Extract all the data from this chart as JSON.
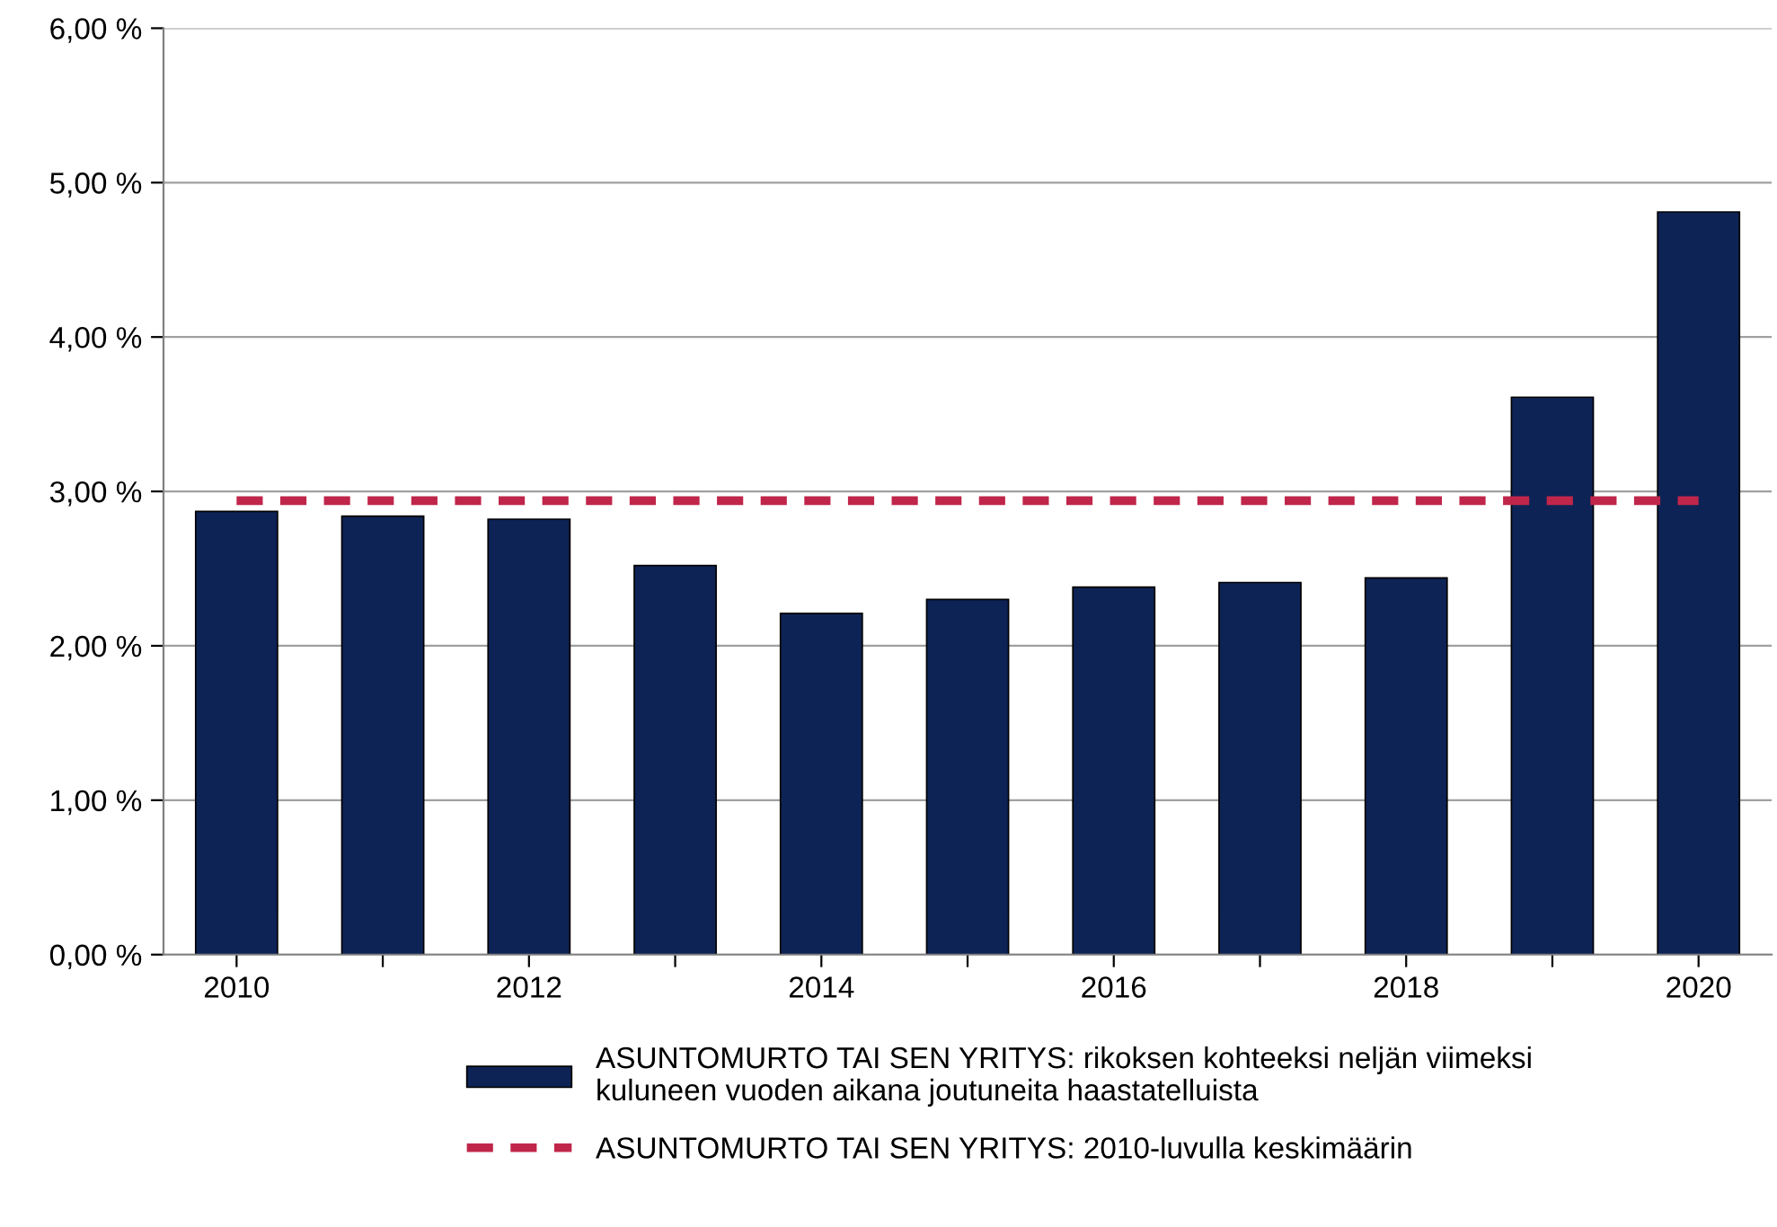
{
  "chart_data": {
    "type": "bar",
    "categories": [
      "2010",
      null,
      "2012",
      null,
      "2014",
      null,
      "2016",
      null,
      "2018",
      null,
      "2020"
    ],
    "series": [
      {
        "name": "ASUNTOMURTO TAI SEN YRITYS: rikoksen kohteeksi neljän viimeksi\nkuluneen vuoden aikana joutuneita haastatelluista",
        "color": "#0e2355",
        "values": [
          2.87,
          2.84,
          2.82,
          2.52,
          2.21,
          2.3,
          2.38,
          2.41,
          2.44,
          3.61,
          4.81
        ]
      },
      {
        "type": "line",
        "name": "ASUNTOMURTO TAI SEN YRITYS: 2010-luvulla keskimäärin",
        "color": "#c0264a",
        "line_style": "dashed",
        "values": [
          2.94,
          2.94,
          2.94,
          2.94,
          2.94,
          2.94,
          2.94,
          2.94,
          2.94,
          2.94,
          2.94
        ]
      }
    ],
    "ylim": [
      0,
      6
    ],
    "yticks": [
      {
        "value": 0,
        "label": "0,00 %"
      },
      {
        "value": 1,
        "label": "1,00 %"
      },
      {
        "value": 2,
        "label": "2,00 %"
      },
      {
        "value": 3,
        "label": "3,00 %"
      },
      {
        "value": 4,
        "label": "4,00 %"
      },
      {
        "value": 5,
        "label": "5,00 %"
      },
      {
        "value": 6,
        "label": "6,00 %"
      }
    ],
    "grid": "y",
    "legend": "bottom"
  }
}
